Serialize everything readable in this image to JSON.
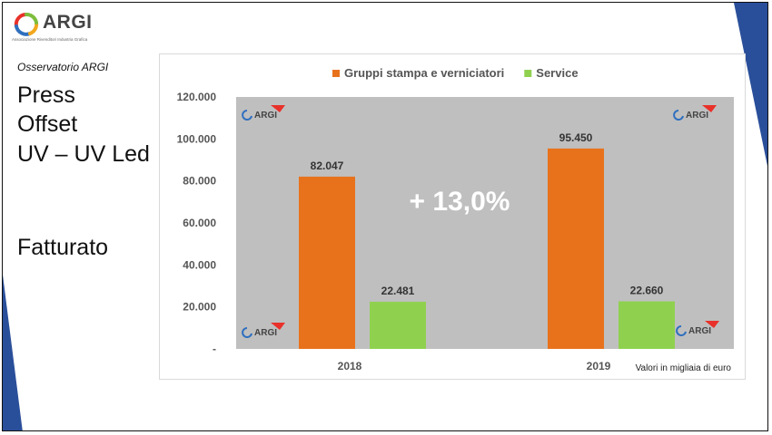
{
  "logo": {
    "name": "ARGI",
    "tagline": "Associazione Rivenditori Industria Grafica"
  },
  "sidebar": {
    "subtitle": "Osservatorio ARGI",
    "title_lines": [
      "Press",
      "Offset",
      "UV – UV Led"
    ],
    "section": "Fatturato"
  },
  "chart_data": {
    "type": "bar",
    "categories": [
      "2018",
      "2019"
    ],
    "series": [
      {
        "name": "Gruppi stampa e verniciatori",
        "values": [
          82047,
          95450
        ],
        "labels": [
          "82.047",
          "95.450"
        ],
        "color": "#e8721c"
      },
      {
        "name": "Service",
        "values": [
          22481,
          22660
        ],
        "labels": [
          "22.481",
          "22.660"
        ],
        "color": "#8fd14f"
      }
    ],
    "ylim": [
      0,
      120000
    ],
    "yticks": [
      "-",
      "20.000",
      "40.000",
      "60.000",
      "80.000",
      "100.000",
      "120.000"
    ],
    "annotation": "+ 13,0%",
    "note": "Valori in migliaia di euro",
    "legend_position": "top",
    "plot_background": "#bfbfbf",
    "watermark": "ARGI"
  },
  "colors": {
    "accent_blue": "#2a4f9a",
    "text": "#111111"
  }
}
